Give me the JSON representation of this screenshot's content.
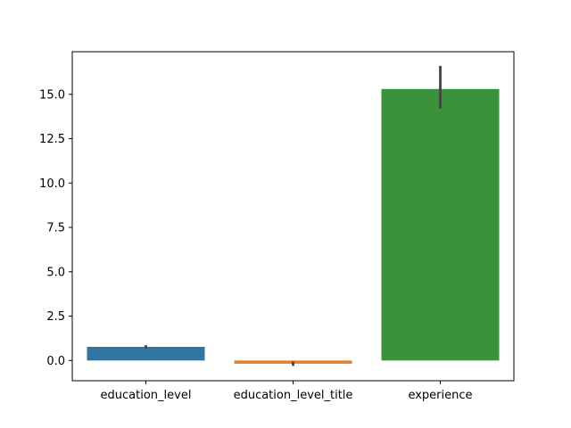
{
  "chart_data": {
    "type": "bar",
    "title": "",
    "xlabel": "",
    "ylabel": "",
    "categories": [
      "education_level",
      "education_level_title",
      "experience"
    ],
    "values": [
      0.77,
      -0.18,
      15.3
    ],
    "error_bars": [
      {
        "low": 0.68,
        "high": 0.86
      },
      {
        "low": -0.3,
        "high": -0.06
      },
      {
        "low": 14.2,
        "high": 16.6
      }
    ],
    "colors": [
      "#3274a1",
      "#e1812c",
      "#3a923a"
    ],
    "error_color": "#424242",
    "ylim": [
      -1.14,
      17.4
    ],
    "yticks": [
      0.0,
      2.5,
      5.0,
      7.5,
      10.0,
      12.5,
      15.0
    ],
    "ytick_labels": [
      "0.0",
      "2.5",
      "5.0",
      "7.5",
      "10.0",
      "12.5",
      "15.0"
    ],
    "grid": false,
    "legend": "none"
  }
}
